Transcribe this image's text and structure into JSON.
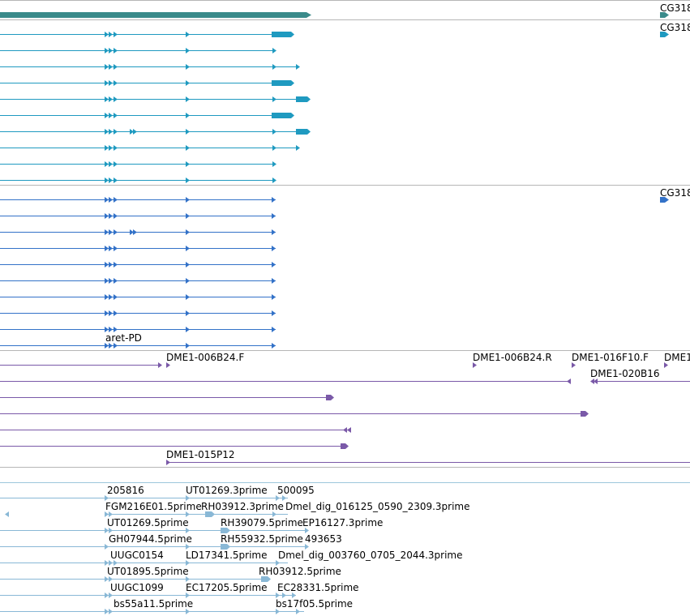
{
  "colors": {
    "gene": "#3a8a8a",
    "transcript_cg": "#1f9ac0",
    "transcript_aret": "#3372c8",
    "bac": "#7a59a8",
    "est": "#89b8d6",
    "divider": "#b6b6b6"
  },
  "tracks": {
    "gene": {
      "label": "CG318"
    },
    "transcripts_cg": {
      "label": "CG318"
    },
    "transcripts_aret": {
      "label": "CG318",
      "label2": "aret-PD"
    },
    "bac": {
      "labels": [
        "DME1-006B24.F",
        "DME1-006B24.R",
        "DME1-016F10.F",
        "DME1",
        "DME1-020B16",
        "DME1-015P12"
      ]
    },
    "est": {
      "labels": [
        "205816",
        "UT01269.3prime",
        "500095",
        "FGM216E01.5prime",
        "RH03912.3prime",
        "Dmel_dig_016125_0590_2309.3prime",
        "UT01269.5prime",
        "RH39079.5prime",
        "EP16127.3prime",
        "GH07944.5prime",
        "RH55932.5prime",
        "493653",
        "UUGC0154",
        "LD17341.5prime",
        "Dmel_dig_003760_0705_2044.3prime",
        "UT01895.5prime",
        "RH03912.5prime",
        "UUGC1099",
        "EC17205.5prime",
        "EC28331.5prime",
        "bs55a11.5prime",
        "bs17f05.5prime"
      ]
    }
  }
}
